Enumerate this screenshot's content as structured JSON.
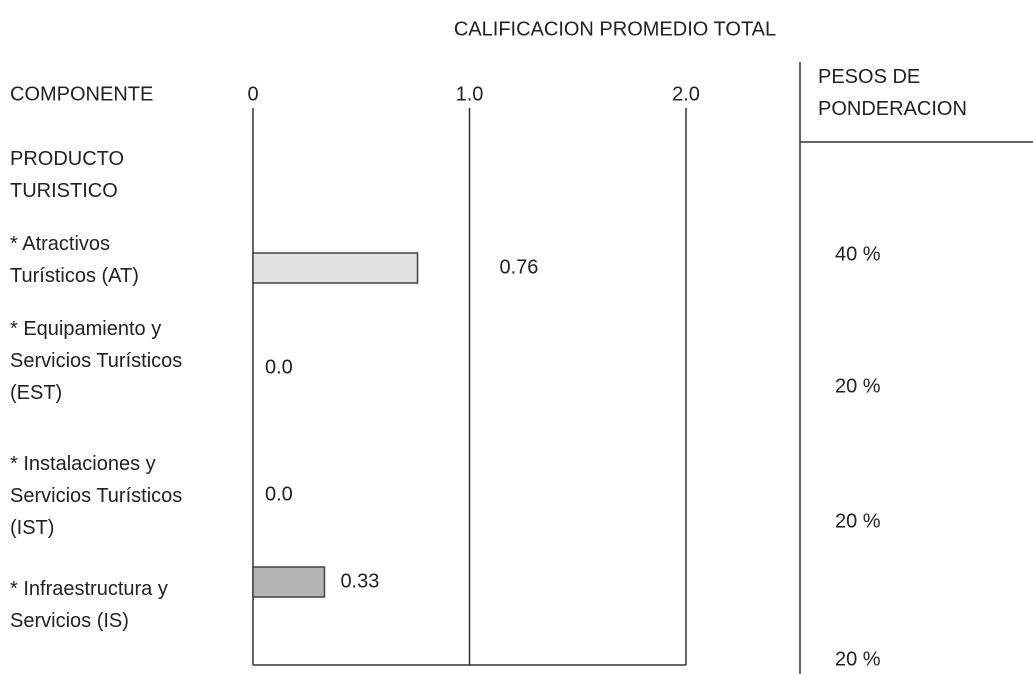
{
  "chart_data": {
    "type": "bar",
    "orientation": "horizontal",
    "title": "CALIFICACION PROMEDIO TOTAL",
    "category_header": "COMPONENTE",
    "group_label": "PRODUCTO\nTURISTICO",
    "categories": [
      "* Atractivos\nTurísticos (AT)",
      "* Equipamiento y\nServicios Turísticos\n(EST)",
      "* Instalaciones y\nServicios Turísticos\n(IST)",
      "* Infraestructura y\nServicios (IS)"
    ],
    "values": [
      0.76,
      0,
      0,
      0.33
    ],
    "value_labels": [
      "0.76",
      "0.0",
      "0.0",
      "0.33"
    ],
    "colors": [
      "#e2e2e2",
      "#e2e2e2",
      "#e2e2e2",
      "#b4b4b4"
    ],
    "xlim": [
      0,
      2
    ],
    "xticks": [
      0,
      {
        "value": 1,
        "label": "1.0"
      },
      {
        "value": 2,
        "label": "2.0"
      }
    ],
    "grid": true,
    "weights_header": "PESOS DE\nPONDERACION",
    "weights": [
      "40 %",
      "20 %",
      "20 %",
      "20 %"
    ]
  }
}
